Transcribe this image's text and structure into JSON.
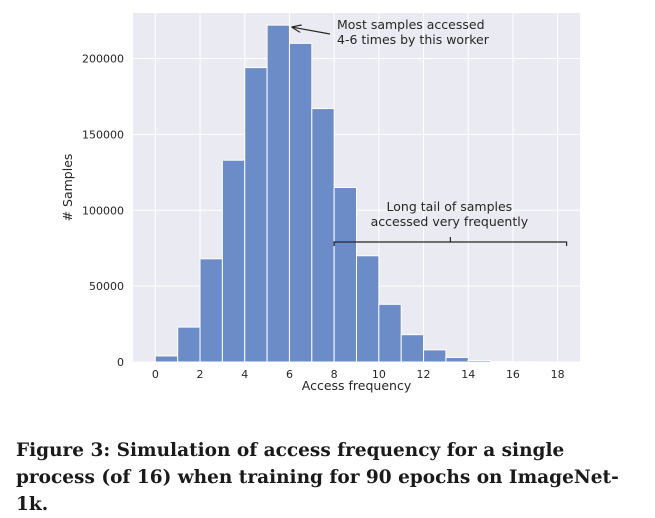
{
  "chart_data": {
    "type": "bar",
    "xlabel": "Access frequency",
    "ylabel": "# Samples",
    "xlim": [
      -1,
      19
    ],
    "ylim": [
      0,
      230000
    ],
    "grid": true,
    "bin_width": 1,
    "x_ticks": [
      0,
      2,
      4,
      6,
      8,
      10,
      12,
      14,
      16,
      18
    ],
    "y_ticks": [
      0,
      50000,
      100000,
      150000,
      200000
    ],
    "bins": [
      {
        "start": 0,
        "value": 4000
      },
      {
        "start": 1,
        "value": 23000
      },
      {
        "start": 2,
        "value": 68000
      },
      {
        "start": 3,
        "value": 133000
      },
      {
        "start": 4,
        "value": 194000
      },
      {
        "start": 5,
        "value": 222000
      },
      {
        "start": 6,
        "value": 210000
      },
      {
        "start": 7,
        "value": 167000
      },
      {
        "start": 8,
        "value": 115000
      },
      {
        "start": 9,
        "value": 70000
      },
      {
        "start": 10,
        "value": 38000
      },
      {
        "start": 11,
        "value": 18000
      },
      {
        "start": 12,
        "value": 8000
      },
      {
        "start": 13,
        "value": 3000
      },
      {
        "start": 14,
        "value": 1000
      },
      {
        "start": 15,
        "value": 300
      },
      {
        "start": 16,
        "value": 100
      },
      {
        "start": 17,
        "value": 50
      }
    ],
    "annotations": [
      {
        "lines": [
          "Most samples accessed",
          "4-6 times by this worker"
        ],
        "points_to_x": 6.0,
        "points_to_y": 220000
      },
      {
        "lines": [
          "Long tail of samples",
          "accessed very frequently"
        ],
        "bracket_from": 8,
        "bracket_to": 18.4
      }
    ]
  },
  "colors": {
    "bar": "#6b8cc6",
    "bar_edge": "#ffffff",
    "plot_bg": "#eaeaf2",
    "grid": "#ffffff"
  },
  "caption": {
    "text": "Figure 3: Simulation of access frequency for a single process (of 16) when training for 90 epochs on ImageNet-1k."
  }
}
